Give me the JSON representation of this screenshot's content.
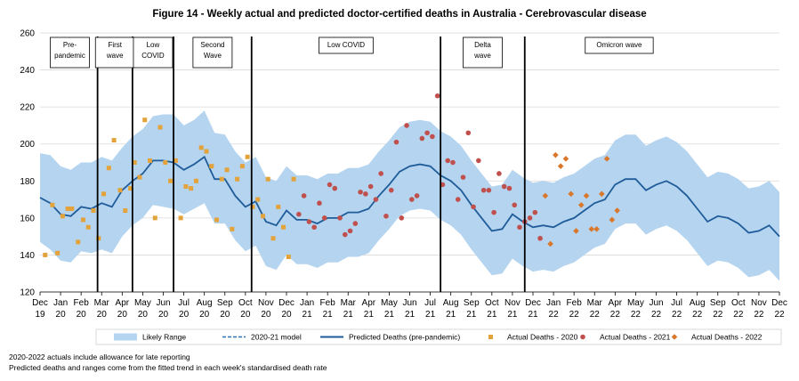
{
  "chart_data": {
    "type": "line",
    "title": "Figure 14 - Weekly actual and predicted doctor-certified deaths in Australia - Cerebrovascular disease",
    "xlabel": "",
    "ylabel": "",
    "ylim": [
      120,
      260
    ],
    "y_ticks": [
      120,
      140,
      160,
      180,
      200,
      220,
      240,
      260
    ],
    "grid": true,
    "legend_position": "bottom",
    "x_tick_labels": [
      [
        "Dec",
        "19"
      ],
      [
        "Jan",
        "20"
      ],
      [
        "Feb",
        "20"
      ],
      [
        "Mar",
        "20"
      ],
      [
        "Apr",
        "20"
      ],
      [
        "May",
        "20"
      ],
      [
        "Jun",
        "20"
      ],
      [
        "Jul",
        "20"
      ],
      [
        "Aug",
        "20"
      ],
      [
        "Sep",
        "20"
      ],
      [
        "Oct",
        "20"
      ],
      [
        "Nov",
        "20"
      ],
      [
        "Dec",
        "20"
      ],
      [
        "Jan",
        "21"
      ],
      [
        "Feb",
        "21"
      ],
      [
        "Mar",
        "21"
      ],
      [
        "Apr",
        "21"
      ],
      [
        "May",
        "21"
      ],
      [
        "Jun",
        "21"
      ],
      [
        "Jul",
        "21"
      ],
      [
        "Aug",
        "21"
      ],
      [
        "Sep",
        "21"
      ],
      [
        "Oct",
        "21"
      ],
      [
        "Nov",
        "21"
      ],
      [
        "Dec",
        "21"
      ],
      [
        "Jan",
        "22"
      ],
      [
        "Feb",
        "22"
      ],
      [
        "Mar",
        "22"
      ],
      [
        "Apr",
        "22"
      ],
      [
        "May",
        "22"
      ],
      [
        "Jun",
        "22"
      ],
      [
        "Jul",
        "22"
      ],
      [
        "Aug",
        "22"
      ],
      [
        "Sep",
        "22"
      ],
      [
        "Oct",
        "22"
      ],
      [
        "Nov",
        "22"
      ],
      [
        "Dec",
        "22"
      ]
    ],
    "period_lines": [
      2.8,
      4.5,
      6.5,
      10.3,
      19.5,
      23.6
    ],
    "period_labels": [
      {
        "label": [
          "Pre-",
          "pandemic"
        ],
        "x": 1.45
      },
      {
        "label": [
          "First",
          "wave"
        ],
        "x": 3.65
      },
      {
        "label": [
          "Low",
          "COVID"
        ],
        "x": 5.5
      },
      {
        "label": [
          "Second",
          "Wave"
        ],
        "x": 8.4
      },
      {
        "label": [
          "Low COVID"
        ],
        "x": 14.9
      },
      {
        "label": [
          "Delta",
          "wave"
        ],
        "x": 21.55
      },
      {
        "label": [
          "Omicron wave"
        ],
        "x": 28.2
      }
    ],
    "predicted": {
      "name": "Predicted Deaths (pre-pandemic)",
      "color": "#1f5c99",
      "x": [
        0,
        0.5,
        1,
        1.5,
        2,
        2.5,
        3,
        3.5,
        4,
        4.5,
        5,
        5.5,
        6,
        6.5,
        7,
        7.5,
        8,
        8.5,
        9,
        9.5,
        10,
        10.5,
        11,
        11.5,
        12,
        12.5,
        13,
        13.5,
        14,
        14.5,
        15,
        15.5,
        16,
        16.5,
        17,
        17.5,
        18,
        18.5,
        19,
        19.5,
        20,
        20.5,
        21,
        21.5,
        22,
        22.5,
        23,
        23.5,
        24,
        24.5,
        25,
        25.5,
        26,
        26.5,
        27,
        27.5,
        28,
        28.5,
        29,
        29.5,
        30,
        30.5,
        31,
        31.5,
        32,
        32.5,
        33,
        33.5,
        34,
        34.5,
        35,
        35.5,
        36
      ],
      "y": [
        171,
        168,
        162,
        161,
        166,
        165,
        168,
        166,
        175,
        180,
        184,
        191,
        191,
        190,
        186,
        189,
        193,
        181,
        181,
        172,
        166,
        169,
        158,
        156,
        164,
        159,
        159,
        157,
        160,
        160,
        163,
        163,
        165,
        172,
        178,
        185,
        188,
        189,
        188,
        183,
        180,
        175,
        167,
        160,
        153,
        154,
        162,
        158,
        155,
        156,
        155,
        158,
        160,
        164,
        168,
        170,
        178,
        181,
        181,
        175,
        178,
        180,
        177,
        172,
        165,
        158,
        161,
        160,
        157,
        152,
        153,
        156,
        150
      ]
    },
    "range": {
      "name": "Likely Range",
      "color": "#b4d4f0",
      "x": [
        0,
        0.5,
        1,
        1.5,
        2,
        2.5,
        3,
        3.5,
        4,
        4.5,
        5,
        5.5,
        6,
        6.5,
        7,
        7.5,
        8,
        8.5,
        9,
        9.5,
        10,
        10.5,
        11,
        11.5,
        12,
        12.5,
        13,
        13.5,
        14,
        14.5,
        15,
        15.5,
        16,
        16.5,
        17,
        17.5,
        18,
        18.5,
        19,
        19.5,
        20,
        20.5,
        21,
        21.5,
        22,
        22.5,
        23,
        23.5,
        24,
        24.5,
        25,
        25.5,
        26,
        26.5,
        27,
        27.5,
        28,
        28.5,
        29,
        29.5,
        30,
        30.5,
        31,
        31.5,
        32,
        32.5,
        33,
        33.5,
        34,
        34.5,
        35,
        35.5,
        36
      ],
      "upper": [
        195,
        194,
        188,
        186,
        190,
        190,
        193,
        191,
        198,
        204,
        208,
        215,
        216,
        216,
        210,
        213,
        218,
        206,
        205,
        196,
        190,
        193,
        182,
        180,
        188,
        183,
        183,
        181,
        184,
        184,
        187,
        187,
        189,
        196,
        202,
        209,
        212,
        213,
        212,
        207,
        204,
        199,
        191,
        184,
        177,
        178,
        186,
        182,
        179,
        180,
        179,
        182,
        184,
        188,
        192,
        194,
        202,
        205,
        205,
        199,
        202,
        204,
        201,
        196,
        189,
        182,
        185,
        184,
        181,
        176,
        177,
        180,
        174
      ],
      "lower": [
        147,
        143,
        137,
        136,
        142,
        141,
        143,
        141,
        150,
        156,
        160,
        167,
        166,
        165,
        162,
        165,
        168,
        157,
        157,
        148,
        142,
        145,
        134,
        132,
        140,
        135,
        135,
        133,
        136,
        136,
        139,
        139,
        141,
        148,
        154,
        161,
        164,
        165,
        164,
        159,
        156,
        151,
        143,
        136,
        129,
        130,
        138,
        134,
        131,
        132,
        131,
        134,
        136,
        140,
        144,
        146,
        154,
        157,
        157,
        151,
        154,
        156,
        153,
        148,
        141,
        134,
        137,
        136,
        133,
        128,
        129,
        132,
        126
      ]
    },
    "model_2020_21": {
      "name": "2020-21 model",
      "color": "#2e75b6"
    },
    "actual_2020": {
      "name": "Actual Deaths - 2020",
      "color": "#e3a33a",
      "x": [
        0.25,
        0.6,
        0.85,
        1.1,
        1.35,
        1.55,
        1.85,
        2.1,
        2.35,
        2.6,
        2.85,
        3.1,
        3.35,
        3.6,
        3.9,
        4.15,
        4.4,
        4.6,
        4.85,
        5.1,
        5.35,
        5.6,
        5.85,
        6.1,
        6.35,
        6.6,
        6.85,
        7.1,
        7.35,
        7.6,
        7.85,
        8.1,
        8.35,
        8.6,
        8.85,
        9.1,
        9.35,
        9.6,
        9.85,
        10.1,
        10.35,
        10.6,
        10.85,
        11.1,
        11.35,
        11.6,
        11.85,
        12.1,
        12.35
      ],
      "y": [
        140,
        167,
        141,
        161,
        165,
        165,
        147,
        159,
        155,
        164,
        149,
        173,
        187,
        202,
        175,
        164,
        176,
        190,
        182,
        213,
        191,
        160,
        209,
        190,
        180,
        191,
        160,
        177,
        176,
        180,
        198,
        196,
        188,
        159,
        181,
        186,
        154,
        181,
        188,
        193,
        166,
        170,
        161,
        181,
        149,
        166,
        155,
        139,
        181
      ]
    },
    "actual_2021": {
      "name": "Actual Deaths - 2021",
      "color": "#c0504d",
      "x": [
        12.6,
        12.85,
        13.1,
        13.35,
        13.6,
        13.85,
        14.1,
        14.35,
        14.6,
        14.85,
        15.1,
        15.35,
        15.6,
        15.85,
        16.1,
        16.35,
        16.6,
        16.85,
        17.1,
        17.35,
        17.6,
        17.85,
        18.1,
        18.35,
        18.6,
        18.85,
        19.1,
        19.35,
        19.6,
        19.85,
        20.1,
        20.35,
        20.6,
        20.85,
        21.1,
        21.35,
        21.6,
        21.85,
        22.1,
        22.35,
        22.6,
        22.85,
        23.1,
        23.35,
        23.6,
        23.85,
        24.1,
        24.35
      ],
      "y": [
        162,
        172,
        158,
        155,
        168,
        160,
        178,
        176,
        160,
        151,
        153,
        157,
        174,
        173,
        177,
        170,
        184,
        161,
        175,
        201,
        160,
        210,
        170,
        172,
        203,
        206,
        204,
        226,
        178,
        191,
        190,
        170,
        182,
        206,
        166,
        191,
        175,
        175,
        163,
        184,
        177,
        176,
        167,
        155,
        158,
        160,
        163,
        149
      ]
    },
    "actual_2022": {
      "name": "Actual Deaths - 2022",
      "color": "#d9772b",
      "x": [
        24.6,
        24.85,
        25.1,
        25.35,
        25.6,
        25.85,
        26.1,
        26.35,
        26.6,
        26.85,
        27.1,
        27.35,
        27.6,
        27.85,
        28.1
      ],
      "y": [
        172,
        146,
        194,
        188,
        192,
        173,
        153,
        167,
        172,
        154,
        154,
        173,
        192,
        159,
        164
      ]
    }
  }
}
